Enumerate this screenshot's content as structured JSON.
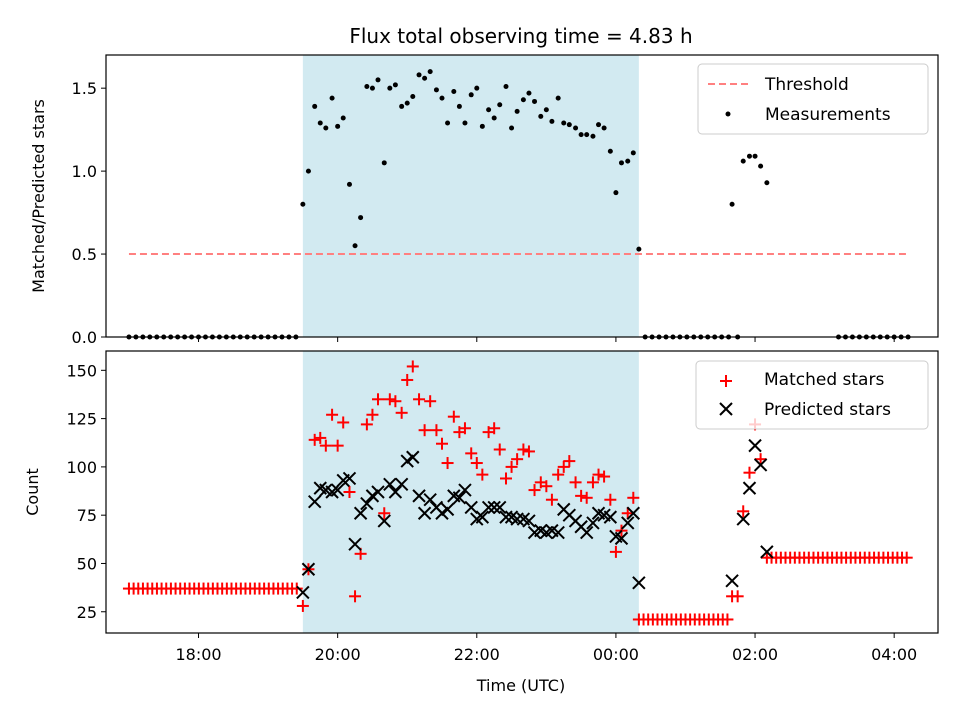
{
  "title": "Flux total observing time = 4.83 h",
  "colors": {
    "threshold": "#ff8080",
    "measurements": "#000000",
    "matched": "#ff0000",
    "predicted": "#000000",
    "span": "#add8e6"
  },
  "chart_data": [
    {
      "type": "scatter",
      "panel": "top",
      "ylabel": "Matched/Predicted stars",
      "xlabel": "",
      "xlim": [
        16.67,
        28.63
      ],
      "ylim": [
        0,
        1.7
      ],
      "yticks": [
        0.0,
        0.5,
        1.0,
        1.5
      ],
      "ytick_labels": [
        "0.0",
        "0.5",
        "1.0",
        "1.5"
      ],
      "span": [
        19.5,
        24.33
      ],
      "legend": {
        "placement": "top-right",
        "threshold_label": "Threshold",
        "measurements_label": "Measurements"
      },
      "threshold": {
        "value": 0.5,
        "x": [
          17.0,
          28.2
        ]
      },
      "series": [
        {
          "name": "Measurements",
          "zero_ranges": [
            [
              17.0,
              19.47,
              0.1
            ],
            [
              24.42,
              25.62,
              0.1
            ],
            [
              27.2,
              28.2,
              0.1
            ]
          ],
          "points": [
            [
              19.5,
              0.8
            ],
            [
              19.58,
              1.0
            ],
            [
              19.67,
              1.39
            ],
            [
              19.75,
              1.29
            ],
            [
              19.83,
              1.26
            ],
            [
              19.92,
              1.44
            ],
            [
              20.0,
              1.27
            ],
            [
              20.08,
              1.32
            ],
            [
              20.17,
              0.92
            ],
            [
              20.25,
              0.55
            ],
            [
              20.33,
              0.72
            ],
            [
              20.42,
              1.51
            ],
            [
              20.5,
              1.5
            ],
            [
              20.58,
              1.55
            ],
            [
              20.67,
              1.05
            ],
            [
              20.75,
              1.5
            ],
            [
              20.83,
              1.52
            ],
            [
              20.92,
              1.39
            ],
            [
              21.0,
              1.41
            ],
            [
              21.08,
              1.45
            ],
            [
              21.17,
              1.58
            ],
            [
              21.25,
              1.56
            ],
            [
              21.33,
              1.6
            ],
            [
              21.42,
              1.49
            ],
            [
              21.5,
              1.44
            ],
            [
              21.58,
              1.29
            ],
            [
              21.67,
              1.48
            ],
            [
              21.75,
              1.39
            ],
            [
              21.83,
              1.29
            ],
            [
              21.92,
              1.46
            ],
            [
              22.0,
              1.5
            ],
            [
              22.08,
              1.27
            ],
            [
              22.17,
              1.37
            ],
            [
              22.25,
              1.32
            ],
            [
              22.33,
              1.4
            ],
            [
              22.42,
              1.51
            ],
            [
              22.5,
              1.26
            ],
            [
              22.58,
              1.36
            ],
            [
              22.67,
              1.43
            ],
            [
              22.75,
              1.47
            ],
            [
              22.83,
              1.42
            ],
            [
              22.92,
              1.33
            ],
            [
              23.0,
              1.37
            ],
            [
              23.08,
              1.3
            ],
            [
              23.17,
              1.44
            ],
            [
              23.25,
              1.29
            ],
            [
              23.33,
              1.28
            ],
            [
              23.42,
              1.26
            ],
            [
              23.5,
              1.22
            ],
            [
              23.58,
              1.22
            ],
            [
              23.67,
              1.21
            ],
            [
              23.75,
              1.28
            ],
            [
              23.83,
              1.26
            ],
            [
              23.92,
              1.12
            ],
            [
              24.0,
              0.87
            ],
            [
              24.08,
              1.05
            ],
            [
              24.17,
              1.06
            ],
            [
              24.25,
              1.11
            ],
            [
              24.33,
              0.53
            ],
            [
              25.67,
              0.8
            ],
            [
              25.75,
              0.0
            ],
            [
              25.83,
              1.06
            ],
            [
              25.92,
              1.09
            ],
            [
              26.0,
              1.09
            ],
            [
              26.08,
              1.03
            ],
            [
              26.17,
              0.93
            ]
          ]
        }
      ]
    },
    {
      "type": "scatter",
      "panel": "bottom",
      "ylabel": "Count",
      "xlabel": "Time (UTC)",
      "xlim": [
        16.67,
        28.63
      ],
      "ylim": [
        14,
        160
      ],
      "yticks": [
        25,
        50,
        75,
        100,
        125,
        150
      ],
      "ytick_labels": [
        "25",
        "50",
        "75",
        "100",
        "125",
        "150"
      ],
      "xticks": [
        18,
        20,
        22,
        24,
        26,
        28
      ],
      "xtick_labels": [
        "18:00",
        "20:00",
        "22:00",
        "00:00",
        "02:00",
        "04:00"
      ],
      "span": [
        19.5,
        24.33
      ],
      "legend": {
        "placement": "top-right"
      },
      "series": [
        {
          "name": "Matched stars",
          "marker": "plus",
          "ranges": [
            [
              17.0,
              19.42,
              0.067,
              37
            ],
            [
              24.33,
              25.62,
              0.067,
              21
            ],
            [
              26.17,
              28.2,
              0.067,
              53
            ]
          ],
          "points": [
            [
              19.5,
              28
            ],
            [
              19.58,
              47
            ],
            [
              19.67,
              114
            ],
            [
              19.75,
              115
            ],
            [
              19.83,
              111
            ],
            [
              19.92,
              127
            ],
            [
              20.0,
              111
            ],
            [
              20.08,
              123
            ],
            [
              20.17,
              87
            ],
            [
              20.25,
              33
            ],
            [
              20.33,
              55
            ],
            [
              20.42,
              122
            ],
            [
              20.5,
              127
            ],
            [
              20.58,
              135
            ],
            [
              20.67,
              76
            ],
            [
              20.75,
              135
            ],
            [
              20.83,
              134
            ],
            [
              20.92,
              128
            ],
            [
              21.0,
              145
            ],
            [
              21.08,
              152
            ],
            [
              21.17,
              135
            ],
            [
              21.25,
              119
            ],
            [
              21.33,
              134
            ],
            [
              21.42,
              119
            ],
            [
              21.5,
              112
            ],
            [
              21.58,
              102
            ],
            [
              21.67,
              126
            ],
            [
              21.75,
              118
            ],
            [
              21.83,
              120
            ],
            [
              21.92,
              107
            ],
            [
              22.0,
              102
            ],
            [
              22.08,
              96
            ],
            [
              22.17,
              118
            ],
            [
              22.25,
              120
            ],
            [
              22.33,
              109
            ],
            [
              22.42,
              94
            ],
            [
              22.5,
              100
            ],
            [
              22.58,
              104
            ],
            [
              22.67,
              109
            ],
            [
              22.75,
              108
            ],
            [
              22.83,
              88
            ],
            [
              22.92,
              92
            ],
            [
              23.0,
              90
            ],
            [
              23.08,
              83
            ],
            [
              23.17,
              96
            ],
            [
              23.25,
              100
            ],
            [
              23.33,
              103
            ],
            [
              23.42,
              92
            ],
            [
              23.5,
              85
            ],
            [
              23.58,
              84
            ],
            [
              23.67,
              92
            ],
            [
              23.75,
              96
            ],
            [
              23.83,
              95
            ],
            [
              23.92,
              83
            ],
            [
              24.0,
              56
            ],
            [
              24.08,
              67
            ],
            [
              24.17,
              76
            ],
            [
              24.25,
              84
            ],
            [
              25.67,
              33
            ],
            [
              25.75,
              33
            ],
            [
              25.83,
              77
            ],
            [
              25.92,
              97
            ],
            [
              26.0,
              122
            ],
            [
              26.08,
              104
            ]
          ]
        },
        {
          "name": "Predicted stars",
          "marker": "x",
          "points": [
            [
              19.5,
              35
            ],
            [
              19.58,
              47
            ],
            [
              19.67,
              82
            ],
            [
              19.75,
              89
            ],
            [
              19.83,
              88
            ],
            [
              19.92,
              87
            ],
            [
              20.0,
              88
            ],
            [
              20.08,
              93
            ],
            [
              20.17,
              94
            ],
            [
              20.25,
              60
            ],
            [
              20.33,
              76
            ],
            [
              20.42,
              81
            ],
            [
              20.5,
              85
            ],
            [
              20.58,
              87
            ],
            [
              20.67,
              72
            ],
            [
              20.75,
              91
            ],
            [
              20.83,
              87
            ],
            [
              20.92,
              91
            ],
            [
              21.0,
              103
            ],
            [
              21.08,
              105
            ],
            [
              21.17,
              85
            ],
            [
              21.25,
              76
            ],
            [
              21.33,
              83
            ],
            [
              21.42,
              79
            ],
            [
              21.5,
              76
            ],
            [
              21.58,
              78
            ],
            [
              21.67,
              85
            ],
            [
              21.75,
              84
            ],
            [
              21.83,
              88
            ],
            [
              21.92,
              79
            ],
            [
              22.0,
              73
            ],
            [
              22.08,
              74
            ],
            [
              22.17,
              79
            ],
            [
              22.25,
              79
            ],
            [
              22.33,
              79
            ],
            [
              22.42,
              74
            ],
            [
              22.5,
              74
            ],
            [
              22.58,
              73
            ],
            [
              22.67,
              73
            ],
            [
              22.75,
              72
            ],
            [
              22.83,
              66
            ],
            [
              22.92,
              67
            ],
            [
              23.0,
              66
            ],
            [
              23.08,
              67
            ],
            [
              23.17,
              66
            ],
            [
              23.25,
              78
            ],
            [
              23.33,
              75
            ],
            [
              23.42,
              72
            ],
            [
              23.5,
              69
            ],
            [
              23.58,
              66
            ],
            [
              23.67,
              71
            ],
            [
              23.75,
              76
            ],
            [
              23.83,
              75
            ],
            [
              23.92,
              74
            ],
            [
              24.0,
              64
            ],
            [
              24.08,
              63
            ],
            [
              24.17,
              71
            ],
            [
              24.25,
              76
            ],
            [
              24.33,
              40
            ],
            [
              25.67,
              41
            ],
            [
              25.83,
              73
            ],
            [
              25.92,
              89
            ],
            [
              26.0,
              111
            ],
            [
              26.08,
              101
            ],
            [
              26.17,
              56
            ]
          ]
        }
      ]
    }
  ]
}
